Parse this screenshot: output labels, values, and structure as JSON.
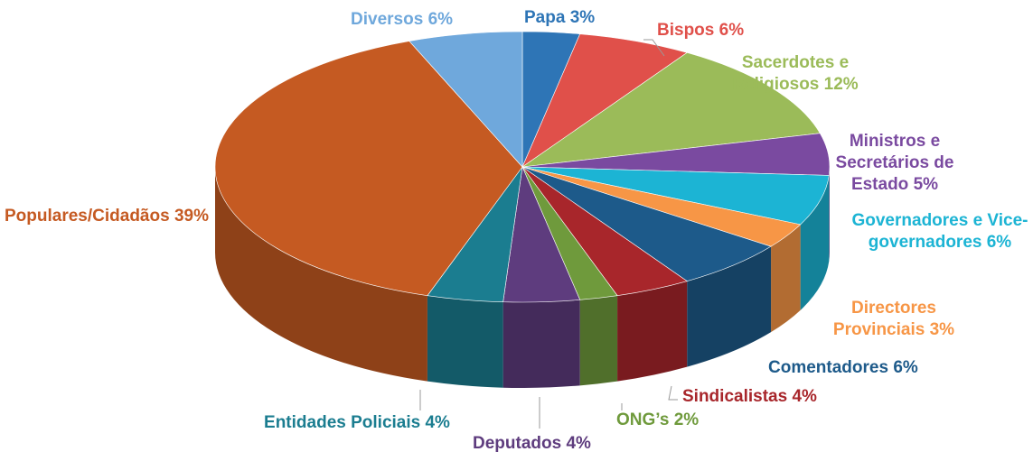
{
  "chart_data": {
    "type": "pie",
    "categories": [
      "Papa",
      "Bispos",
      "Sacerdotes e Religiosos",
      "Ministros e Secretários de Estado",
      "Governadores e Vice-governadores",
      "Directores Provinciais",
      "Comentadores",
      "Sindicalistas",
      "ONG’s",
      "Deputados",
      "Entidades Policiais",
      "Populares/Cidadãos",
      "Diversos"
    ],
    "values": [
      3,
      6,
      12,
      5,
      6,
      3,
      6,
      4,
      2,
      4,
      4,
      39,
      6
    ],
    "value_labels": [
      "3%",
      "6%",
      "12%",
      "5%",
      "6%",
      "3%",
      "6%",
      "4%",
      "2%",
      "4%",
      "4%",
      "39%",
      "6%"
    ],
    "colors": [
      "#2e75b6",
      "#e0504a",
      "#9bbb59",
      "#7a4aa0",
      "#1cb4d4",
      "#f79646",
      "#1d5a8a",
      "#a8262b",
      "#6f9a3c",
      "#5e3c7e",
      "#1b7d90",
      "#c55a22",
      "#6fa8dc"
    ]
  }
}
